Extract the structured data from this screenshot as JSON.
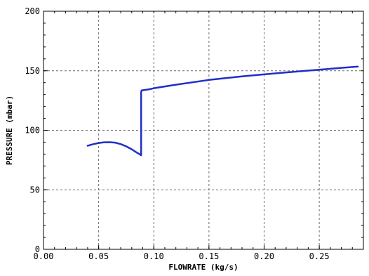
{
  "chart_data": {
    "type": "line",
    "title": "",
    "xlabel": "FLOWRATE (kg/s)",
    "ylabel": "PRESSURE (mbar)",
    "xlim": [
      0.0,
      0.29
    ],
    "ylim": [
      0,
      200
    ],
    "x_ticks": [
      0.0,
      0.05,
      0.1,
      0.15,
      0.2,
      0.25
    ],
    "x_tick_labels": [
      "0.00",
      "0.05",
      "0.10",
      "0.15",
      "0.20",
      "0.25"
    ],
    "y_ticks": [
      0,
      50,
      100,
      150,
      200
    ],
    "y_tick_labels": [
      "0",
      "50",
      "100",
      "150",
      "200"
    ],
    "grid": true,
    "legend": "none",
    "series": [
      {
        "color": "#1f2fc7",
        "x": [
          0.04,
          0.045,
          0.05,
          0.055,
          0.06,
          0.065,
          0.07,
          0.075,
          0.08,
          0.085,
          0.087,
          0.0885,
          0.0885,
          0.089,
          0.095,
          0.1,
          0.12,
          0.15,
          0.18,
          0.2,
          0.22,
          0.25,
          0.27,
          0.285
        ],
        "y": [
          87,
          88.3,
          89.3,
          89.9,
          90,
          89.6,
          88.4,
          86.5,
          84,
          81,
          80,
          79,
          132,
          133.5,
          134.3,
          135.3,
          138.3,
          142.3,
          145.3,
          147,
          148.6,
          150.9,
          152.4,
          153.5
        ]
      }
    ]
  }
}
